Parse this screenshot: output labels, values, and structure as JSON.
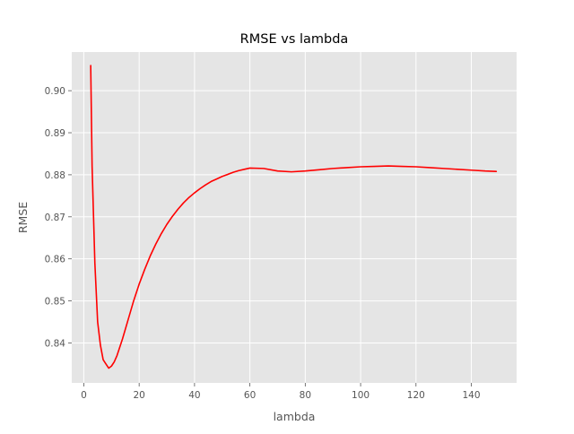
{
  "chart_data": {
    "type": "line",
    "title": "RMSE vs lambda",
    "xlabel": "lambda",
    "ylabel": "RMSE",
    "xlim": [
      -4.35,
      156.35
    ],
    "ylim": [
      0.8305,
      0.9092
    ],
    "xticks": [
      0,
      20,
      40,
      60,
      80,
      100,
      120,
      140
    ],
    "yticks": [
      0.84,
      0.85,
      0.86,
      0.87,
      0.88,
      0.89,
      0.9
    ],
    "xtick_labels": [
      "0",
      "20",
      "40",
      "60",
      "80",
      "100",
      "120",
      "140"
    ],
    "ytick_labels": [
      "0.84",
      "0.85",
      "0.86",
      "0.87",
      "0.88",
      "0.89",
      "0.90"
    ],
    "grid": true,
    "background": "#e5e5e5",
    "grid_color": "#ffffff",
    "series": [
      {
        "color": "#ff0000",
        "x": [
          2.5,
          3,
          4,
          5,
          6,
          7,
          8,
          9,
          10,
          11,
          12,
          14,
          16,
          18,
          20,
          22,
          24,
          26,
          28,
          30,
          32,
          34,
          36,
          38,
          40,
          42,
          44,
          46,
          48,
          50,
          52,
          54,
          56,
          58,
          60,
          65,
          70,
          75,
          80,
          85,
          90,
          95,
          100,
          105,
          110,
          115,
          120,
          125,
          130,
          135,
          140,
          145,
          149
        ],
        "y": [
          0.906,
          0.882,
          0.859,
          0.845,
          0.8395,
          0.836,
          0.835,
          0.834,
          0.8345,
          0.8355,
          0.837,
          0.841,
          0.8455,
          0.85,
          0.854,
          0.8575,
          0.8607,
          0.8635,
          0.866,
          0.8682,
          0.8701,
          0.8718,
          0.8733,
          0.8746,
          0.8757,
          0.8767,
          0.8776,
          0.8784,
          0.879,
          0.8796,
          0.8801,
          0.8806,
          0.881,
          0.8813,
          0.8816,
          0.8815,
          0.8809,
          0.8807,
          0.8809,
          0.8812,
          0.8815,
          0.8817,
          0.8819,
          0.882,
          0.8821,
          0.882,
          0.8819,
          0.8817,
          0.8815,
          0.8813,
          0.8811,
          0.8809,
          0.8808
        ]
      }
    ]
  }
}
